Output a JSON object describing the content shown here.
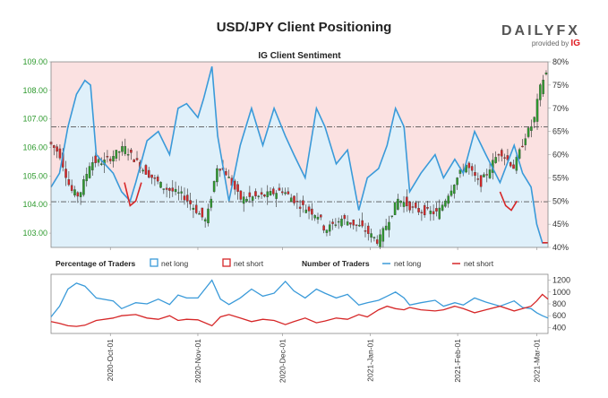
{
  "title": "USD/JPY Client Positioning",
  "brand": {
    "word_left": "DAILY",
    "word_right": "FX",
    "provided_by": "provided by",
    "ig_mark": "IG"
  },
  "chart_data": [
    {
      "type": "candlestick",
      "title": "IG Client Sentiment",
      "left_axis": {
        "ylim": [
          102.5,
          109.0
        ],
        "ticks": [
          "103.00",
          "104.00",
          "105.00",
          "106.00",
          "107.00",
          "108.00",
          "109.00"
        ],
        "tick_color": "#2e9a2e"
      },
      "right_axis": {
        "ylim": [
          40,
          80
        ],
        "ticks": [
          "40%",
          "45%",
          "50%",
          "55%",
          "60%",
          "65%",
          "70%",
          "75%",
          "80%"
        ]
      },
      "x_range": [
        "2020-09-10",
        "2021-03-05"
      ],
      "reference_lines": {
        "price": 104.1,
        "net_long_pct": 66
      },
      "colors": {
        "up": "#2e9a2e",
        "down": "#d62728",
        "net_long": "#3a9ad9",
        "net_short": "#d62728",
        "net_long_fill": "#dff0fa",
        "net_short_fill": "#fbe1e1"
      },
      "price_anchors": [
        [
          "2020-09-10",
          106.2
        ],
        [
          "2020-09-14",
          105.8
        ],
        [
          "2020-09-18",
          104.5
        ],
        [
          "2020-09-21",
          104.3
        ],
        [
          "2020-09-25",
          105.5
        ],
        [
          "2020-09-30",
          105.5
        ],
        [
          "2020-10-07",
          106.0
        ],
        [
          "2020-10-14",
          105.2
        ],
        [
          "2020-10-21",
          104.6
        ],
        [
          "2020-10-28",
          104.3
        ],
        [
          "2020-11-05",
          103.4
        ],
        [
          "2020-11-09",
          105.4
        ],
        [
          "2020-11-12",
          105.1
        ],
        [
          "2020-11-17",
          104.2
        ],
        [
          "2020-11-25",
          104.3
        ],
        [
          "2020-12-02",
          104.5
        ],
        [
          "2020-12-08",
          104.0
        ],
        [
          "2020-12-15",
          103.6
        ],
        [
          "2020-12-17",
          103.1
        ],
        [
          "2020-12-23",
          103.5
        ],
        [
          "2020-12-30",
          103.2
        ],
        [
          "2021-01-05",
          102.7
        ],
        [
          "2021-01-12",
          104.2
        ],
        [
          "2021-01-18",
          103.8
        ],
        [
          "2021-01-26",
          103.7
        ],
        [
          "2021-02-01",
          104.8
        ],
        [
          "2021-02-05",
          105.4
        ],
        [
          "2021-02-10",
          104.7
        ],
        [
          "2021-02-17",
          105.9
        ],
        [
          "2021-02-22",
          105.3
        ],
        [
          "2021-02-26",
          106.4
        ],
        [
          "2021-03-01",
          106.9
        ],
        [
          "2021-03-03",
          108.0
        ],
        [
          "2021-03-05",
          108.6
        ]
      ],
      "net_long_pct_anchors": [
        [
          "2020-09-10",
          53
        ],
        [
          "2020-09-13",
          56
        ],
        [
          "2020-09-16",
          66
        ],
        [
          "2020-09-19",
          73
        ],
        [
          "2020-09-22",
          76
        ],
        [
          "2020-09-24",
          75
        ],
        [
          "2020-09-26",
          60
        ],
        [
          "2020-10-02",
          56
        ],
        [
          "2020-10-05",
          52
        ],
        [
          "2020-10-08",
          50
        ],
        [
          "2020-10-10",
          54
        ],
        [
          "2020-10-14",
          63
        ],
        [
          "2020-10-18",
          65
        ],
        [
          "2020-10-22",
          60
        ],
        [
          "2020-10-25",
          70
        ],
        [
          "2020-10-28",
          71
        ],
        [
          "2020-11-01",
          68
        ],
        [
          "2020-11-03",
          72
        ],
        [
          "2020-11-06",
          79
        ],
        [
          "2020-11-08",
          64
        ],
        [
          "2020-11-12",
          50
        ],
        [
          "2020-11-16",
          62
        ],
        [
          "2020-11-20",
          70
        ],
        [
          "2020-11-24",
          62
        ],
        [
          "2020-11-28",
          70
        ],
        [
          "2020-12-02",
          64
        ],
        [
          "2020-12-05",
          60
        ],
        [
          "2020-12-09",
          55
        ],
        [
          "2020-12-13",
          70
        ],
        [
          "2020-12-16",
          66
        ],
        [
          "2020-12-20",
          58
        ],
        [
          "2020-12-24",
          61
        ],
        [
          "2020-12-28",
          48
        ],
        [
          "2020-12-31",
          55
        ],
        [
          "2021-01-04",
          57
        ],
        [
          "2021-01-07",
          62
        ],
        [
          "2021-01-10",
          70
        ],
        [
          "2021-01-13",
          66
        ],
        [
          "2021-01-15",
          52
        ],
        [
          "2021-01-19",
          56
        ],
        [
          "2021-01-24",
          60
        ],
        [
          "2021-01-27",
          55
        ],
        [
          "2021-01-31",
          59
        ],
        [
          "2021-02-03",
          56
        ],
        [
          "2021-02-07",
          65
        ],
        [
          "2021-02-11",
          60
        ],
        [
          "2021-02-16",
          54
        ],
        [
          "2021-02-21",
          62
        ],
        [
          "2021-02-24",
          56
        ],
        [
          "2021-02-27",
          53
        ],
        [
          "2021-03-01",
          45
        ],
        [
          "2021-03-03",
          41
        ],
        [
          "2021-03-05",
          41
        ]
      ],
      "net_short_segments": [
        [
          [
            "2020-10-06",
            54
          ],
          [
            "2020-10-08",
            49
          ],
          [
            "2020-10-10",
            50
          ],
          [
            "2020-10-12",
            54
          ]
        ],
        [
          [
            "2021-02-16",
            52
          ],
          [
            "2021-02-18",
            49
          ],
          [
            "2021-02-20",
            48
          ],
          [
            "2021-02-22",
            50
          ]
        ],
        [
          [
            "2021-03-03",
            41
          ],
          [
            "2021-03-05",
            41
          ]
        ]
      ]
    },
    {
      "type": "line",
      "legend_left_title": "Percentage of Traders",
      "legend_right_title": "Number of Traders",
      "series": [
        {
          "name": "net long",
          "values_anchor": [
            [
              "2020-09-10",
              580
            ],
            [
              "2020-09-13",
              760
            ],
            [
              "2020-09-16",
              1050
            ],
            [
              "2020-09-19",
              1150
            ],
            [
              "2020-09-22",
              1100
            ],
            [
              "2020-09-26",
              900
            ],
            [
              "2020-10-02",
              850
            ],
            [
              "2020-10-05",
              720
            ],
            [
              "2020-10-10",
              820
            ],
            [
              "2020-10-14",
              800
            ],
            [
              "2020-10-18",
              880
            ],
            [
              "2020-10-22",
              790
            ],
            [
              "2020-10-25",
              950
            ],
            [
              "2020-10-28",
              900
            ],
            [
              "2020-11-01",
              900
            ],
            [
              "2020-11-06",
              1200
            ],
            [
              "2020-11-09",
              880
            ],
            [
              "2020-11-12",
              790
            ],
            [
              "2020-11-16",
              900
            ],
            [
              "2020-11-20",
              1050
            ],
            [
              "2020-11-24",
              930
            ],
            [
              "2020-11-28",
              980
            ],
            [
              "2020-12-02",
              1180
            ],
            [
              "2020-12-05",
              1020
            ],
            [
              "2020-12-09",
              900
            ],
            [
              "2020-12-13",
              1050
            ],
            [
              "2020-12-16",
              980
            ],
            [
              "2020-12-20",
              900
            ],
            [
              "2020-12-24",
              960
            ],
            [
              "2020-12-28",
              780
            ],
            [
              "2020-12-31",
              820
            ],
            [
              "2021-01-04",
              860
            ],
            [
              "2021-01-07",
              930
            ],
            [
              "2021-01-10",
              1000
            ],
            [
              "2021-01-13",
              900
            ],
            [
              "2021-01-15",
              780
            ],
            [
              "2021-01-19",
              820
            ],
            [
              "2021-01-24",
              860
            ],
            [
              "2021-01-27",
              760
            ],
            [
              "2021-01-31",
              820
            ],
            [
              "2021-02-03",
              780
            ],
            [
              "2021-02-07",
              900
            ],
            [
              "2021-02-11",
              830
            ],
            [
              "2021-02-16",
              760
            ],
            [
              "2021-02-21",
              850
            ],
            [
              "2021-02-24",
              740
            ],
            [
              "2021-02-27",
              720
            ],
            [
              "2021-03-01",
              650
            ],
            [
              "2021-03-03",
              600
            ],
            [
              "2021-03-05",
              560
            ]
          ]
        },
        {
          "name": "net short",
          "values_anchor": [
            [
              "2020-09-10",
              500
            ],
            [
              "2020-09-13",
              470
            ],
            [
              "2020-09-16",
              430
            ],
            [
              "2020-09-19",
              420
            ],
            [
              "2020-09-22",
              440
            ],
            [
              "2020-09-26",
              520
            ],
            [
              "2020-10-02",
              560
            ],
            [
              "2020-10-05",
              600
            ],
            [
              "2020-10-10",
              620
            ],
            [
              "2020-10-14",
              560
            ],
            [
              "2020-10-18",
              540
            ],
            [
              "2020-10-22",
              600
            ],
            [
              "2020-10-25",
              520
            ],
            [
              "2020-10-28",
              540
            ],
            [
              "2020-11-01",
              530
            ],
            [
              "2020-11-06",
              430
            ],
            [
              "2020-11-09",
              580
            ],
            [
              "2020-11-12",
              620
            ],
            [
              "2020-11-16",
              560
            ],
            [
              "2020-11-20",
              500
            ],
            [
              "2020-11-24",
              540
            ],
            [
              "2020-11-28",
              520
            ],
            [
              "2020-12-02",
              450
            ],
            [
              "2020-12-05",
              500
            ],
            [
              "2020-12-09",
              560
            ],
            [
              "2020-12-13",
              480
            ],
            [
              "2020-12-16",
              510
            ],
            [
              "2020-12-20",
              560
            ],
            [
              "2020-12-24",
              540
            ],
            [
              "2020-12-28",
              620
            ],
            [
              "2020-12-31",
              580
            ],
            [
              "2021-01-04",
              700
            ],
            [
              "2021-01-07",
              760
            ],
            [
              "2021-01-10",
              720
            ],
            [
              "2021-01-13",
              700
            ],
            [
              "2021-01-15",
              740
            ],
            [
              "2021-01-19",
              700
            ],
            [
              "2021-01-24",
              680
            ],
            [
              "2021-01-27",
              700
            ],
            [
              "2021-01-31",
              760
            ],
            [
              "2021-02-03",
              720
            ],
            [
              "2021-02-07",
              650
            ],
            [
              "2021-02-11",
              700
            ],
            [
              "2021-02-16",
              760
            ],
            [
              "2021-02-21",
              680
            ],
            [
              "2021-02-24",
              720
            ],
            [
              "2021-02-27",
              760
            ],
            [
              "2021-03-01",
              850
            ],
            [
              "2021-03-03",
              960
            ],
            [
              "2021-03-05",
              880
            ]
          ]
        }
      ],
      "ylim": [
        300,
        1300
      ],
      "right_ticks": [
        "400",
        "600",
        "800",
        "1000",
        "1200"
      ],
      "x_ticks": [
        "2020-Oct-01",
        "2020-Nov-01",
        "2020-Dec-01",
        "2021-Jan-01",
        "2021-Feb-01",
        "2021-Mar-01"
      ],
      "x_tick_dates": [
        "2020-10-01",
        "2020-11-01",
        "2020-12-01",
        "2021-01-01",
        "2021-02-01",
        "2021-03-01"
      ]
    }
  ]
}
